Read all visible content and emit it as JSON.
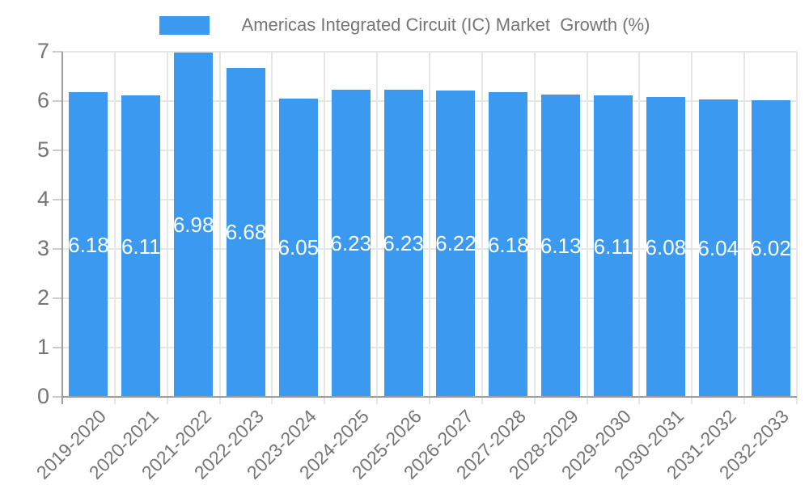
{
  "chart_data": {
    "type": "bar",
    "title": "Americas Integrated Circuit (IC) Market  Growth (%)",
    "categories": [
      "2019-2020",
      "2020-2021",
      "2021-2022",
      "2022-2023",
      "2023-2024",
      "2024-2025",
      "2025-2026",
      "2026-2027",
      "2027-2028",
      "2028-2029",
      "2029-2030",
      "2030-2031",
      "2031-2032",
      "2032-2033"
    ],
    "values": [
      6.18,
      6.11,
      6.98,
      6.68,
      6.05,
      6.23,
      6.23,
      6.22,
      6.18,
      6.13,
      6.11,
      6.08,
      6.04,
      6.02
    ],
    "value_labels": [
      "6.18",
      "6.11",
      "6.98",
      "6.68",
      "6.05",
      "6.23",
      "6.23",
      "6.22",
      "6.18",
      "6.13",
      "6.11",
      "6.08",
      "6.04",
      "6.02"
    ],
    "xlabel": "",
    "ylabel": "",
    "ylim": [
      0,
      7
    ],
    "yticks": [
      0,
      1,
      2,
      3,
      4,
      5,
      6,
      7
    ],
    "grid": true,
    "legend_position": "top",
    "colors": {
      "bar": "#3B99F0",
      "gridline": "#e6e6e6",
      "axis_line": "#9e9e9e",
      "tick": "#cccccc",
      "axis_text": "#757575",
      "bar_label_text": "#ffffff",
      "background": "#ffffff"
    }
  }
}
